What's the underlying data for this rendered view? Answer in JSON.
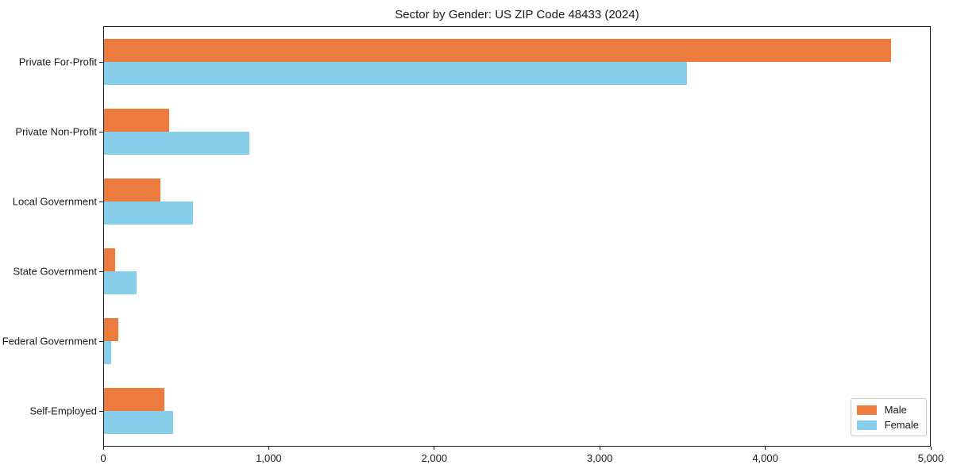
{
  "title": "Sector by Gender: US ZIP Code 48433 (2024)",
  "colors": {
    "male": "#EC7C3E",
    "female": "#87CEEB",
    "axis": "#1a1a1a",
    "legend_border": "#c9c9c9"
  },
  "legend": {
    "items": [
      {
        "label": "Male",
        "color": "#EC7C3E"
      },
      {
        "label": "Female",
        "color": "#87CEEB"
      }
    ]
  },
  "chart_data": {
    "type": "bar",
    "orientation": "horizontal",
    "title": "Sector by Gender: US ZIP Code 48433 (2024)",
    "xlabel": "",
    "ylabel": "",
    "categories": [
      "Private For-Profit",
      "Private Non-Profit",
      "Local Government",
      "State Government",
      "Federal Government",
      "Self-Employed"
    ],
    "series": [
      {
        "name": "Male",
        "color": "#EC7C3E",
        "values": [
          4765,
          395,
          340,
          65,
          85,
          365
        ]
      },
      {
        "name": "Female",
        "color": "#87CEEB",
        "values": [
          3530,
          880,
          540,
          195,
          45,
          420
        ]
      }
    ],
    "xlim": [
      0,
      5000
    ],
    "x_ticks": [
      "0",
      "1,000",
      "2,000",
      "3,000",
      "4,000",
      "5,000"
    ],
    "x_tick_values": [
      0,
      1000,
      2000,
      3000,
      4000,
      5000
    ],
    "grid": false,
    "legend_position": "lower right"
  }
}
